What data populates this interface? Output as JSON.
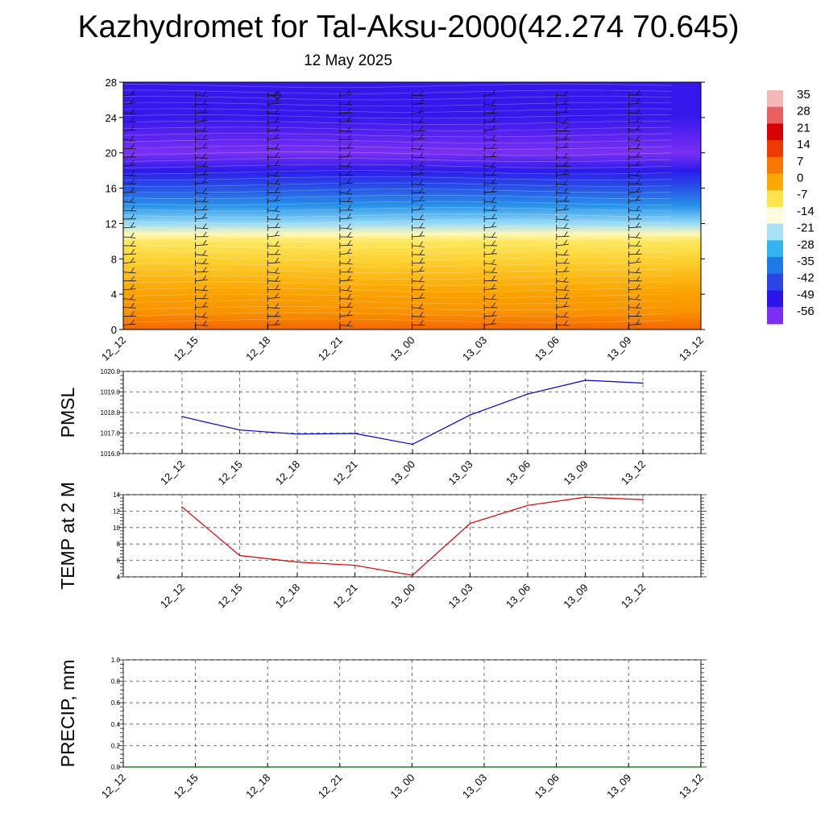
{
  "title": "Kazhydromet for Tal-Aksu-2000(42.274 70.645)",
  "subtitle": "12 May 2025",
  "colors": {
    "pmsl_line": "#0000cc",
    "temp_line": "#dd0000",
    "precip_line": "#006600",
    "grid": "#555555"
  },
  "chart_data": [
    {
      "type": "heatmap",
      "name": "cross-section",
      "x_ticks": [
        "12_12",
        "12_15",
        "12_18",
        "12_21",
        "13_00",
        "13_03",
        "13_06",
        "13_09",
        "13_12"
      ],
      "y_ticks": [
        "0",
        "4",
        "8",
        "12",
        "16",
        "20",
        "24",
        "28"
      ],
      "ylim": [
        0,
        28
      ],
      "colorbar": {
        "labels": [
          "35",
          "28",
          "21",
          "14",
          "7",
          "0",
          "-7",
          "-14",
          "-21",
          "-28",
          "-35",
          "-42",
          "-49",
          "-56"
        ],
        "colors": [
          "#f5b8b8",
          "#e86060",
          "#d80000",
          "#ee3a00",
          "#f77700",
          "#fba800",
          "#fde44a",
          "#fefede",
          "#a8e0f6",
          "#32b4ee",
          "#1e7ae6",
          "#2a44e6",
          "#2a14ec",
          "#7b2ff3"
        ]
      },
      "temperature_profile": [
        [
          0,
          9
        ],
        [
          2,
          3
        ],
        [
          4,
          1
        ],
        [
          6,
          -2
        ],
        [
          8,
          -5
        ],
        [
          10,
          -8
        ],
        [
          10.8,
          -12
        ],
        [
          12,
          -22
        ],
        [
          14,
          -32
        ],
        [
          16,
          -40
        ],
        [
          18,
          -48
        ],
        [
          20,
          -56
        ],
        [
          22,
          -53
        ],
        [
          24,
          -50
        ],
        [
          28,
          -50
        ]
      ],
      "wind_barb_levels": [
        0.5,
        1.5,
        2.5,
        3.5,
        4.5,
        5.5,
        6.5,
        7.5,
        8.5,
        9.5,
        10.5,
        11.5,
        12.5,
        13.5,
        14.5,
        15.5,
        16.5,
        17.5,
        18.5,
        19.5,
        20.5,
        21.5,
        22.5,
        23.5,
        24.5,
        25.5,
        26.5
      ]
    },
    {
      "type": "line",
      "ylabel": "PMSL",
      "x": [
        "12_12",
        "12_15",
        "12_18",
        "12_21",
        "13_00",
        "13_03",
        "13_06",
        "13_09",
        "13_12"
      ],
      "values": [
        1017.8,
        1017.15,
        1016.95,
        1016.98,
        1016.45,
        1017.88,
        1018.9,
        1019.57,
        1019.43
      ],
      "ylim": [
        1016.0,
        1020.0
      ],
      "y_ticks": [
        "1016.0",
        "1017.0",
        "1018.0",
        "1019.0",
        "1020.0"
      ]
    },
    {
      "type": "line",
      "ylabel": "TEMP at 2 M",
      "x": [
        "12_12",
        "12_15",
        "12_18",
        "12_21",
        "13_00",
        "13_03",
        "13_06",
        "13_09",
        "13_12"
      ],
      "values": [
        12.5,
        6.6,
        5.8,
        5.4,
        4.2,
        10.5,
        12.7,
        13.7,
        13.4
      ],
      "ylim": [
        4,
        14
      ],
      "y_ticks": [
        "4",
        "6",
        "8",
        "10",
        "12",
        "14"
      ]
    },
    {
      "type": "line",
      "ylabel": "PRECIP, mm",
      "x": [
        "12_12",
        "12_15",
        "12_18",
        "12_21",
        "13_00",
        "13_03",
        "13_06",
        "13_09",
        "13_12"
      ],
      "values": [
        0,
        0,
        0,
        0,
        0,
        0,
        0,
        0,
        0
      ],
      "ylim": [
        0.0,
        1.0
      ],
      "y_ticks": [
        "0.0",
        "0.2",
        "0.4",
        "0.6",
        "0.8",
        "1.0"
      ]
    }
  ]
}
